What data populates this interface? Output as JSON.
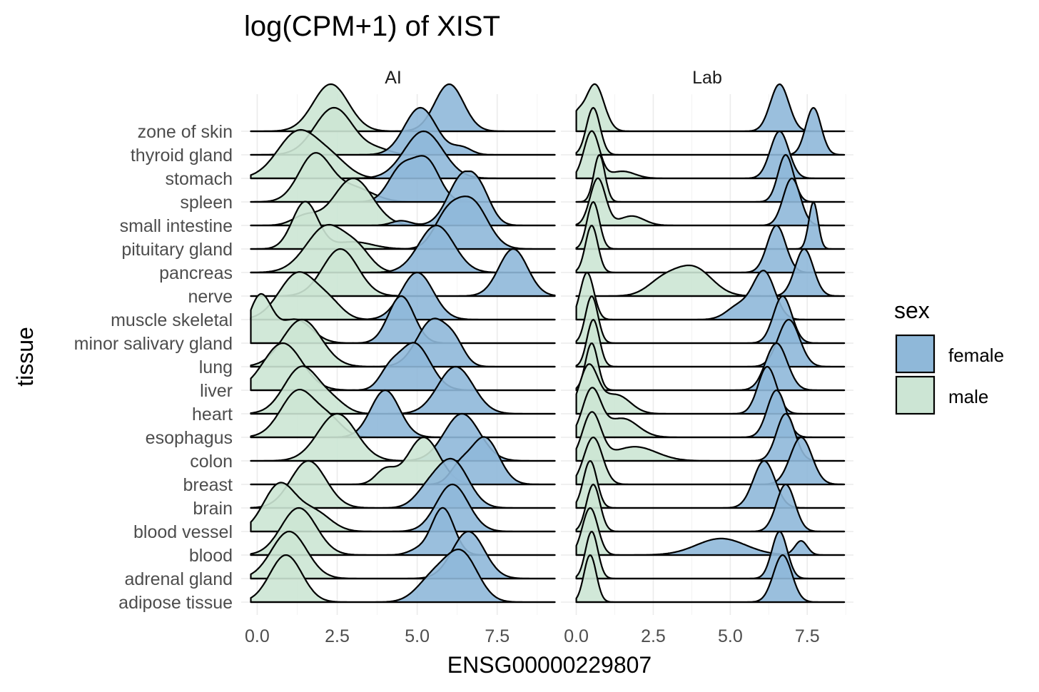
{
  "chart_data": {
    "type": "area",
    "title": "log(CPM+1) of XIST",
    "xlabel": "ENSG00000229807",
    "ylabel": "tissue",
    "xlim": [
      -0.5,
      9.0
    ],
    "x_ticks": [
      0.0,
      2.5,
      5.0,
      7.5
    ],
    "x_tick_labels": [
      "0.0",
      "2.5",
      "5.0",
      "7.5"
    ],
    "grid": true,
    "panels": [
      "AI",
      "Lab"
    ],
    "categories": [
      "zone of skin",
      "thyroid gland",
      "stomach",
      "spleen",
      "small intestine",
      "pituitary gland",
      "pancreas",
      "nerve",
      "muscle skeletal",
      "minor salivary gland",
      "lung",
      "liver",
      "heart",
      "esophagus",
      "colon",
      "breast",
      "brain",
      "blood vessel",
      "blood",
      "adrenal gland",
      "adipose tissue"
    ],
    "legend": {
      "title": "sex",
      "position": "right",
      "entries": [
        {
          "label": "female",
          "color": "#8fb8d9"
        },
        {
          "label": "male",
          "color": "#cce5d4"
        }
      ]
    },
    "series": [
      {
        "name": "female",
        "color": "#8fb8d9"
      },
      {
        "name": "male",
        "color": "#cce5d4"
      }
    ],
    "ridge_peaks": {
      "AI": {
        "zone of skin": {
          "female": [
            [
              6.0,
              1.0,
              0.45
            ]
          ],
          "male": [
            [
              2.3,
              1.0,
              0.55
            ]
          ]
        },
        "thyroid gland": {
          "female": [
            [
              5.1,
              1.0,
              0.5
            ],
            [
              6.4,
              0.15,
              0.3
            ]
          ],
          "male": [
            [
              2.4,
              1.0,
              0.6
            ],
            [
              3.8,
              0.1,
              0.4
            ]
          ]
        },
        "stomach": {
          "female": [
            [
              5.2,
              1.0,
              0.6
            ]
          ],
          "male": [
            [
              1.3,
              1.0,
              0.65
            ],
            [
              2.4,
              0.3,
              0.5
            ]
          ]
        },
        "spleen": {
          "female": [
            [
              4.5,
              0.7,
              0.4
            ],
            [
              5.3,
              0.85,
              0.4
            ]
          ],
          "male": [
            [
              1.8,
              1.0,
              0.5
            ],
            [
              3.0,
              0.3,
              0.6
            ]
          ]
        },
        "small intestine": {
          "female": [
            [
              6.4,
              1.0,
              0.45
            ],
            [
              7.0,
              0.5,
              0.35
            ],
            [
              4.5,
              0.1,
              0.3
            ]
          ],
          "male": [
            [
              3.0,
              1.0,
              0.6
            ],
            [
              1.5,
              0.2,
              0.4
            ]
          ]
        },
        "pituitary gland": {
          "female": [
            [
              6.7,
              1.0,
              0.5
            ],
            [
              5.9,
              0.6,
              0.4
            ]
          ],
          "male": [
            [
              1.5,
              1.0,
              0.4
            ],
            [
              3.0,
              0.15,
              0.6
            ]
          ]
        },
        "pancreas": {
          "female": [
            [
              5.6,
              1.0,
              0.55
            ]
          ],
          "male": [
            [
              2.2,
              1.0,
              0.65
            ],
            [
              3.2,
              0.3,
              0.4
            ]
          ]
        },
        "nerve": {
          "female": [
            [
              8.0,
              1.0,
              0.45
            ]
          ],
          "male": [
            [
              2.6,
              1.0,
              0.55
            ]
          ]
        },
        "muscle skeletal": {
          "female": [
            [
              5.0,
              1.0,
              0.5
            ]
          ],
          "male": [
            [
              1.3,
              1.0,
              0.6
            ],
            [
              2.3,
              0.25,
              0.4
            ]
          ]
        },
        "minor salivary gland": {
          "female": [
            [
              4.5,
              1.0,
              0.4
            ]
          ],
          "male": [
            [
              0.1,
              1.0,
              0.35
            ],
            [
              1.2,
              0.5,
              0.5
            ]
          ]
        },
        "lung": {
          "female": [
            [
              5.5,
              1.0,
              0.5
            ],
            [
              6.2,
              0.3,
              0.3
            ]
          ],
          "male": [
            [
              1.4,
              1.0,
              0.6
            ]
          ]
        },
        "liver": {
          "female": [
            [
              4.9,
              1.0,
              0.5
            ],
            [
              4.1,
              0.3,
              0.3
            ]
          ],
          "male": [
            [
              0.8,
              1.0,
              0.6
            ]
          ]
        },
        "heart": {
          "female": [
            [
              6.2,
              1.0,
              0.55
            ]
          ],
          "male": [
            [
              1.4,
              1.0,
              0.55
            ],
            [
              2.4,
              0.2,
              0.4
            ]
          ]
        },
        "esophagus": {
          "female": [
            [
              4.0,
              1.0,
              0.45
            ]
          ],
          "male": [
            [
              1.3,
              1.0,
              0.55
            ],
            [
              2.3,
              0.3,
              0.4
            ]
          ]
        },
        "colon": {
          "female": [
            [
              6.4,
              1.0,
              0.55
            ]
          ],
          "male": [
            [
              2.5,
              1.0,
              0.6
            ]
          ]
        },
        "breast": {
          "female": [
            [
              7.1,
              1.0,
              0.45
            ],
            [
              6.3,
              0.3,
              0.3
            ]
          ],
          "male": [
            [
              5.2,
              1.0,
              0.5
            ],
            [
              4.0,
              0.3,
              0.3
            ]
          ]
        },
        "brain": {
          "female": [
            [
              6.1,
              1.0,
              0.5
            ],
            [
              5.3,
              0.3,
              0.4
            ]
          ],
          "male": [
            [
              1.6,
              1.0,
              0.55
            ]
          ]
        },
        "blood vessel": {
          "female": [
            [
              6.1,
              1.0,
              0.5
            ]
          ],
          "male": [
            [
              0.7,
              1.0,
              0.5
            ],
            [
              1.8,
              0.4,
              0.5
            ]
          ]
        },
        "blood": {
          "female": [
            [
              5.8,
              1.0,
              0.35
            ],
            [
              5.0,
              0.1,
              0.3
            ]
          ],
          "male": [
            [
              1.3,
              1.0,
              0.55
            ]
          ]
        },
        "adrenal gland": {
          "female": [
            [
              6.6,
              1.0,
              0.5
            ]
          ],
          "male": [
            [
              1.0,
              1.0,
              0.55
            ]
          ]
        },
        "adipose tissue": {
          "female": [
            [
              6.4,
              1.0,
              0.5
            ],
            [
              5.5,
              0.5,
              0.5
            ]
          ],
          "male": [
            [
              0.9,
              1.0,
              0.5
            ]
          ]
        }
      },
      "Lab": {
        "zone of skin": {
          "female": [
            [
              6.6,
              1.0,
              0.3
            ]
          ],
          "male": [
            [
              0.6,
              1.0,
              0.3
            ],
            [
              0.0,
              0.3,
              0.2
            ]
          ]
        },
        "thyroid gland": {
          "female": [
            [
              7.7,
              1.0,
              0.25
            ]
          ],
          "male": [
            [
              0.55,
              1.0,
              0.22
            ]
          ]
        },
        "stomach": {
          "female": [
            [
              6.6,
              1.0,
              0.3
            ]
          ],
          "male": [
            [
              0.5,
              1.0,
              0.25
            ],
            [
              1.5,
              0.15,
              0.4
            ]
          ]
        },
        "spleen": {
          "female": [
            [
              6.8,
              1.0,
              0.25
            ]
          ],
          "male": [
            [
              0.75,
              1.0,
              0.18
            ]
          ]
        },
        "small intestine": {
          "female": [
            [
              7.0,
              1.0,
              0.28
            ]
          ],
          "male": [
            [
              0.7,
              1.0,
              0.25
            ],
            [
              1.8,
              0.2,
              0.4
            ]
          ]
        },
        "pituitary gland": {
          "female": [
            [
              7.7,
              1.0,
              0.15
            ]
          ],
          "male": [
            [
              0.55,
              1.0,
              0.2
            ]
          ]
        },
        "pancreas": {
          "female": [
            [
              6.5,
              1.0,
              0.3
            ]
          ],
          "male": [
            [
              0.5,
              1.0,
              0.2
            ]
          ]
        },
        "nerve": {
          "female": [
            [
              7.4,
              1.0,
              0.3
            ]
          ],
          "male": [
            [
              3.8,
              0.6,
              0.6
            ],
            [
              2.8,
              0.3,
              0.5
            ]
          ]
        },
        "muscle skeletal": {
          "female": [
            [
              6.1,
              1.0,
              0.35
            ],
            [
              5.3,
              0.3,
              0.4
            ]
          ],
          "male": [
            [
              0.35,
              1.0,
              0.22
            ]
          ]
        },
        "minor salivary gland": {
          "female": [
            [
              6.7,
              1.0,
              0.3
            ]
          ],
          "male": [
            [
              0.5,
              1.0,
              0.2
            ]
          ]
        },
        "lung": {
          "female": [
            [
              6.9,
              1.0,
              0.35
            ]
          ],
          "male": [
            [
              0.55,
              1.0,
              0.2
            ]
          ]
        },
        "liver": {
          "female": [
            [
              6.5,
              1.0,
              0.35
            ]
          ],
          "male": [
            [
              0.5,
              1.0,
              0.2
            ]
          ]
        },
        "heart": {
          "female": [
            [
              6.2,
              1.0,
              0.3
            ]
          ],
          "male": [
            [
              0.4,
              1.0,
              0.3
            ],
            [
              1.3,
              0.4,
              0.45
            ]
          ]
        },
        "esophagus": {
          "female": [
            [
              6.5,
              1.0,
              0.3
            ]
          ],
          "male": [
            [
              0.5,
              1.0,
              0.3
            ],
            [
              1.5,
              0.4,
              0.5
            ]
          ]
        },
        "colon": {
          "female": [
            [
              6.8,
              1.0,
              0.3
            ]
          ],
          "male": [
            [
              0.5,
              1.0,
              0.3
            ],
            [
              1.9,
              0.3,
              0.7
            ]
          ]
        },
        "breast": {
          "female": [
            [
              7.3,
              1.0,
              0.35
            ]
          ],
          "male": [
            [
              0.55,
              1.0,
              0.3
            ]
          ]
        },
        "brain": {
          "female": [
            [
              6.1,
              1.0,
              0.35
            ]
          ],
          "male": [
            [
              0.45,
              1.0,
              0.22
            ]
          ]
        },
        "blood vessel": {
          "female": [
            [
              6.8,
              1.0,
              0.3
            ]
          ],
          "male": [
            [
              0.55,
              1.0,
              0.22
            ]
          ]
        },
        "blood": {
          "female": [
            [
              4.7,
              0.35,
              0.8
            ],
            [
              7.3,
              0.3,
              0.2
            ]
          ],
          "male": [
            [
              0.45,
              1.0,
              0.25
            ]
          ]
        },
        "adrenal gland": {
          "female": [
            [
              6.6,
              1.0,
              0.25
            ]
          ],
          "male": [
            [
              0.5,
              1.0,
              0.2
            ]
          ]
        },
        "adipose tissue": {
          "female": [
            [
              6.7,
              1.0,
              0.3
            ]
          ],
          "male": [
            [
              0.45,
              1.0,
              0.2
            ]
          ]
        }
      }
    }
  }
}
